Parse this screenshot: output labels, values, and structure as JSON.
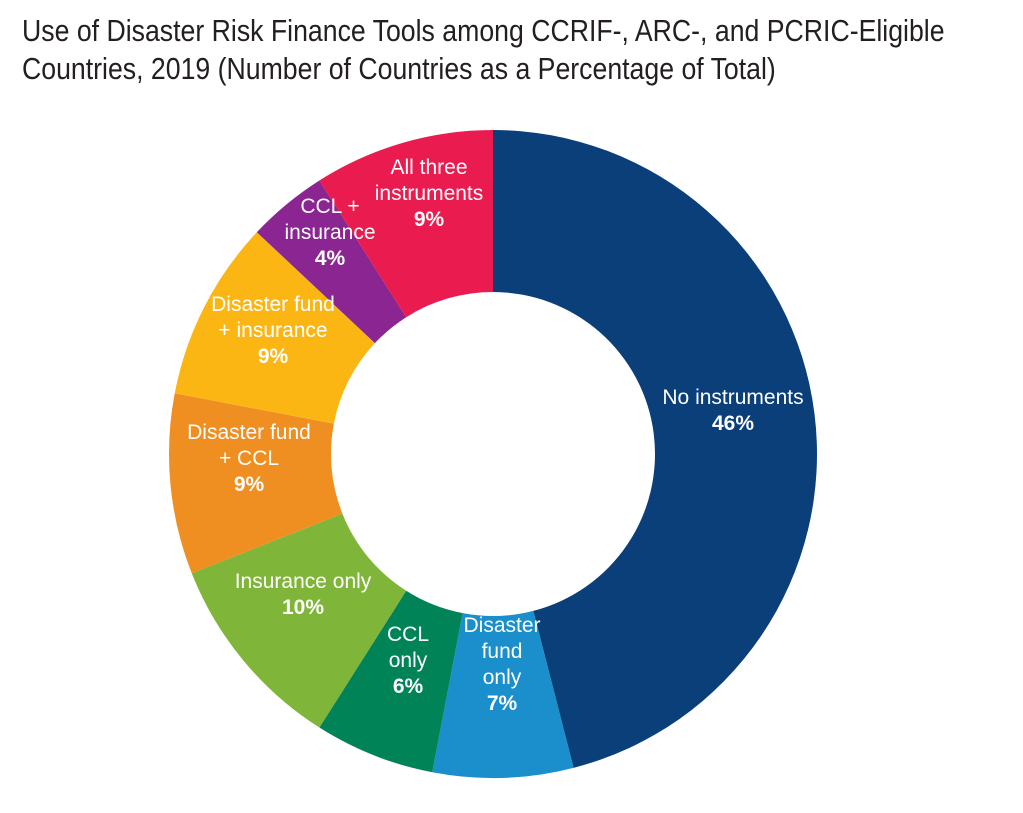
{
  "title_line1": "Use of Disaster Risk Finance Tools among CCRIF-, ARC-, and PCRIC-Eligible",
  "title_line2": "Countries, 2019 (Number of Countries as a Percentage of Total)",
  "chart_data": {
    "type": "pie",
    "variant": "donut",
    "title": "Use of Disaster Risk Finance Tools among CCRIF-, ARC-, and PCRIC-Eligible Countries, 2019 (Number of Countries as a Percentage of Total)",
    "unit": "%",
    "start": "12 o'clock",
    "direction": "clockwise",
    "slices": [
      {
        "label_lines": [
          "No instruments"
        ],
        "value": 46,
        "value_label": "46%",
        "color": "#0a3f7a"
      },
      {
        "label_lines": [
          "Disaster",
          "fund",
          "only"
        ],
        "value": 7,
        "value_label": "7%",
        "color": "#1a8fcb"
      },
      {
        "label_lines": [
          "CCL",
          "only"
        ],
        "value": 6,
        "value_label": "6%",
        "color": "#008457"
      },
      {
        "label_lines": [
          "Insurance only"
        ],
        "value": 10,
        "value_label": "10%",
        "color": "#7fb539"
      },
      {
        "label_lines": [
          "Disaster fund",
          "+ CCL"
        ],
        "value": 9,
        "value_label": "9%",
        "color": "#f08f21"
      },
      {
        "label_lines": [
          "Disaster fund",
          "+ insurance"
        ],
        "value": 9,
        "value_label": "9%",
        "color": "#fcb614"
      },
      {
        "label_lines": [
          "CCL +",
          "insurance"
        ],
        "value": 4,
        "value_label": "4%",
        "color": "#8a2592"
      },
      {
        "label_lines": [
          "All three",
          "instruments"
        ],
        "value": 9,
        "value_label": "9%",
        "color": "#ea1c4f"
      }
    ]
  }
}
